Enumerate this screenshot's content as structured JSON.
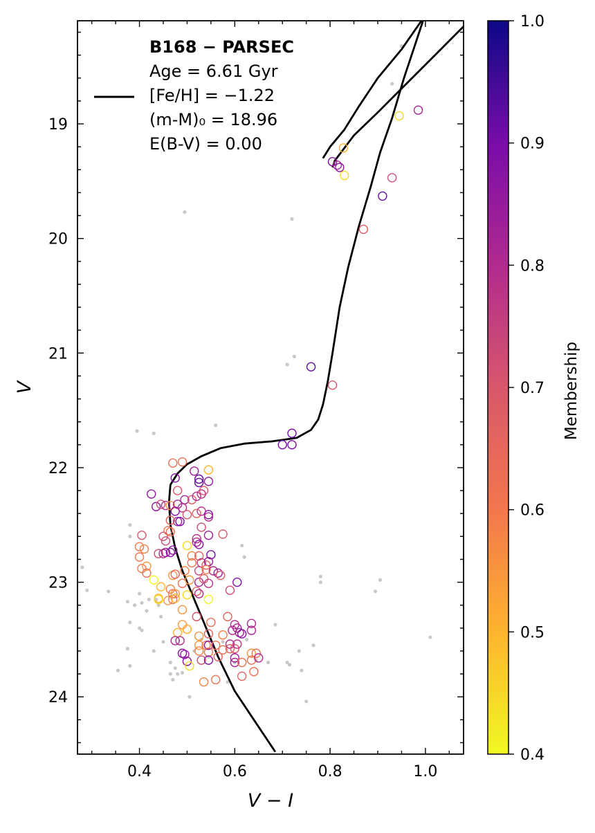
{
  "chart_data": {
    "type": "scatter",
    "xlabel": "V − I",
    "ylabel": "V",
    "xlim": [
      0.27,
      1.08
    ],
    "ylim": [
      24.5,
      18.1
    ],
    "y_inverted": true,
    "x_ticks": [
      0.4,
      0.6,
      0.8,
      1.0
    ],
    "x_tick_labels": [
      "0.4",
      "0.6",
      "0.8",
      "1.0"
    ],
    "y_ticks": [
      19,
      20,
      21,
      22,
      23,
      24
    ],
    "y_tick_labels": [
      "19",
      "20",
      "21",
      "22",
      "23",
      "24"
    ],
    "legend": {
      "position": "upper-left",
      "title": "B168 − PARSEC",
      "lines": [
        "Age = 6.61 Gyr",
        "[Fe/H] = −1.22",
        "(m-M)₀ = 18.96",
        "E(B-V) = 0.00"
      ]
    },
    "colorbar": {
      "label": "Membership",
      "colormap": "plasma_r",
      "range": [
        0.4,
        1.0
      ],
      "ticks": [
        0.4,
        0.5,
        0.6,
        0.7,
        0.8,
        0.9,
        1.0
      ],
      "tick_labels": [
        "0.4",
        "0.5",
        "0.6",
        "0.7",
        "0.8",
        "0.9",
        "1.0"
      ]
    },
    "isochrone": {
      "name": "PARSEC isochrone",
      "color": "#000000",
      "points": [
        [
          0.685,
          24.48
        ],
        [
          0.64,
          24.2
        ],
        [
          0.6,
          23.95
        ],
        [
          0.565,
          23.65
        ],
        [
          0.535,
          23.35
        ],
        [
          0.51,
          23.1
        ],
        [
          0.49,
          22.9
        ],
        [
          0.475,
          22.7
        ],
        [
          0.465,
          22.5
        ],
        [
          0.462,
          22.3
        ],
        [
          0.465,
          22.15
        ],
        [
          0.48,
          22.05
        ],
        [
          0.5,
          21.97
        ],
        [
          0.53,
          21.9
        ],
        [
          0.57,
          21.83
        ],
        [
          0.62,
          21.79
        ],
        [
          0.68,
          21.77
        ],
        [
          0.73,
          21.74
        ],
        [
          0.76,
          21.67
        ],
        [
          0.775,
          21.58
        ],
        [
          0.785,
          21.45
        ],
        [
          0.795,
          21.25
        ],
        [
          0.805,
          21.0
        ],
        [
          0.82,
          20.6
        ],
        [
          0.838,
          20.25
        ],
        [
          0.86,
          19.9
        ],
        [
          0.885,
          19.55
        ],
        [
          0.905,
          19.25
        ],
        [
          0.93,
          18.95
        ],
        [
          0.955,
          18.6
        ],
        [
          0.975,
          18.35
        ],
        [
          0.995,
          18.1
        ]
      ]
    },
    "isochrone_rgb_branch": {
      "points": [
        [
          0.805,
          19.38
        ],
        [
          0.81,
          19.32
        ],
        [
          0.85,
          19.1
        ],
        [
          0.9,
          18.9
        ],
        [
          0.96,
          18.65
        ],
        [
          1.02,
          18.4
        ],
        [
          1.08,
          18.15
        ]
      ]
    },
    "isochrone_agb_branch": {
      "points": [
        [
          0.785,
          19.3
        ],
        [
          0.8,
          19.2
        ],
        [
          0.83,
          19.05
        ],
        [
          0.86,
          18.85
        ],
        [
          0.9,
          18.6
        ],
        [
          0.95,
          18.35
        ],
        [
          1.0,
          18.05
        ]
      ]
    },
    "field_stars": {
      "color": "#c8c8c8",
      "points": [
        [
          0.28,
          22.87
        ],
        [
          0.29,
          23.07
        ],
        [
          0.335,
          23.08
        ],
        [
          0.355,
          23.77
        ],
        [
          0.375,
          23.17
        ],
        [
          0.375,
          23.58
        ],
        [
          0.38,
          23.35
        ],
        [
          0.38,
          23.73
        ],
        [
          0.38,
          22.5
        ],
        [
          0.38,
          22.6
        ],
        [
          0.39,
          23.2
        ],
        [
          0.395,
          21.68
        ],
        [
          0.4,
          23.1
        ],
        [
          0.4,
          23.4
        ],
        [
          0.405,
          23.42
        ],
        [
          0.405,
          23.18
        ],
        [
          0.415,
          23.25
        ],
        [
          0.42,
          23.15
        ],
        [
          0.43,
          21.7
        ],
        [
          0.43,
          23.6
        ],
        [
          0.435,
          23.15
        ],
        [
          0.44,
          23.2
        ],
        [
          0.445,
          23.3
        ],
        [
          0.45,
          23.52
        ],
        [
          0.465,
          23.7
        ],
        [
          0.465,
          23.8
        ],
        [
          0.47,
          23.85
        ],
        [
          0.475,
          23.75
        ],
        [
          0.48,
          23.8
        ],
        [
          0.49,
          23.79
        ],
        [
          0.495,
          19.77
        ],
        [
          0.505,
          24.0
        ],
        [
          0.515,
          23.6
        ],
        [
          0.53,
          23.5
        ],
        [
          0.545,
          23.65
        ],
        [
          0.56,
          21.63
        ],
        [
          0.575,
          23.52
        ],
        [
          0.585,
          23.87
        ],
        [
          0.6,
          23.7
        ],
        [
          0.615,
          22.68
        ],
        [
          0.62,
          22.78
        ],
        [
          0.625,
          23.5
        ],
        [
          0.645,
          23.68
        ],
        [
          0.67,
          23.7
        ],
        [
          0.685,
          23.37
        ],
        [
          0.71,
          21.1
        ],
        [
          0.71,
          23.7
        ],
        [
          0.715,
          23.72
        ],
        [
          0.72,
          19.83
        ],
        [
          0.725,
          21.03
        ],
        [
          0.735,
          23.6
        ],
        [
          0.74,
          23.77
        ],
        [
          0.75,
          24.04
        ],
        [
          0.765,
          23.55
        ],
        [
          0.78,
          22.95
        ],
        [
          0.78,
          23.0
        ],
        [
          0.895,
          23.08
        ],
        [
          0.905,
          22.98
        ],
        [
          0.93,
          18.65
        ],
        [
          0.95,
          18.32
        ],
        [
          1.01,
          23.48
        ]
      ]
    },
    "member_stars": [
      [
        0.47,
        21.96,
        0.62
      ],
      [
        0.49,
        21.95,
        0.62
      ],
      [
        0.515,
        22.03,
        0.84
      ],
      [
        0.545,
        22.02,
        0.5
      ],
      [
        0.475,
        22.09,
        0.88
      ],
      [
        0.525,
        22.1,
        0.92
      ],
      [
        0.525,
        22.13,
        0.92
      ],
      [
        0.545,
        22.12,
        0.86
      ],
      [
        0.425,
        22.23,
        0.86
      ],
      [
        0.48,
        22.2,
        0.7
      ],
      [
        0.535,
        22.2,
        0.68
      ],
      [
        0.435,
        22.34,
        0.86
      ],
      [
        0.445,
        22.32,
        0.72
      ],
      [
        0.455,
        22.33,
        0.8
      ],
      [
        0.465,
        22.33,
        0.55
      ],
      [
        0.475,
        22.38,
        0.88
      ],
      [
        0.48,
        22.32,
        0.82
      ],
      [
        0.495,
        22.28,
        0.82
      ],
      [
        0.51,
        22.28,
        0.68
      ],
      [
        0.52,
        22.25,
        0.8
      ],
      [
        0.53,
        22.23,
        0.78
      ],
      [
        0.49,
        22.35,
        0.8
      ],
      [
        0.5,
        22.41,
        0.7
      ],
      [
        0.48,
        22.47,
        0.84
      ],
      [
        0.485,
        22.47,
        0.9
      ],
      [
        0.52,
        22.4,
        0.66
      ],
      [
        0.53,
        22.38,
        0.78
      ],
      [
        0.545,
        22.41,
        0.88
      ],
      [
        0.53,
        22.52,
        0.72
      ],
      [
        0.465,
        22.46,
        0.66
      ],
      [
        0.465,
        22.56,
        0.62
      ],
      [
        0.545,
        22.43,
        0.8
      ],
      [
        0.405,
        22.59,
        0.7
      ],
      [
        0.45,
        22.6,
        0.72
      ],
      [
        0.455,
        22.64,
        0.72
      ],
      [
        0.46,
        22.55,
        0.62
      ],
      [
        0.545,
        22.59,
        0.84
      ],
      [
        0.575,
        22.58,
        0.68
      ],
      [
        0.52,
        22.62,
        0.78
      ],
      [
        0.52,
        22.65,
        0.8
      ],
      [
        0.525,
        22.67,
        0.88
      ],
      [
        0.4,
        22.69,
        0.6
      ],
      [
        0.41,
        22.71,
        0.58
      ],
      [
        0.44,
        22.75,
        0.72
      ],
      [
        0.45,
        22.75,
        0.8
      ],
      [
        0.455,
        22.74,
        0.84
      ],
      [
        0.465,
        22.74,
        0.88
      ],
      [
        0.47,
        22.72,
        0.86
      ],
      [
        0.5,
        22.68,
        0.45
      ],
      [
        0.51,
        22.77,
        0.58
      ],
      [
        0.525,
        22.77,
        0.66
      ],
      [
        0.55,
        22.76,
        0.9
      ],
      [
        0.4,
        22.78,
        0.6
      ],
      [
        0.405,
        22.88,
        0.6
      ],
      [
        0.415,
        22.86,
        0.55
      ],
      [
        0.415,
        22.92,
        0.62
      ],
      [
        0.51,
        22.83,
        0.62
      ],
      [
        0.53,
        22.83,
        0.78
      ],
      [
        0.54,
        22.85,
        0.66
      ],
      [
        0.545,
        22.82,
        0.84
      ],
      [
        0.47,
        22.94,
        0.55
      ],
      [
        0.475,
        22.93,
        0.66
      ],
      [
        0.495,
        22.9,
        0.58
      ],
      [
        0.525,
        22.9,
        0.72
      ],
      [
        0.54,
        22.89,
        0.58
      ],
      [
        0.555,
        22.9,
        0.8
      ],
      [
        0.565,
        22.92,
        0.84
      ],
      [
        0.57,
        22.94,
        0.68
      ],
      [
        0.43,
        22.98,
        0.4
      ],
      [
        0.49,
        23.01,
        0.62
      ],
      [
        0.505,
        22.98,
        0.55
      ],
      [
        0.525,
        23.0,
        0.82
      ],
      [
        0.535,
        22.97,
        0.68
      ],
      [
        0.545,
        23.01,
        0.78
      ],
      [
        0.605,
        23.0,
        0.88
      ],
      [
        0.445,
        23.04,
        0.5
      ],
      [
        0.465,
        23.06,
        0.58
      ],
      [
        0.47,
        23.1,
        0.62
      ],
      [
        0.475,
        23.1,
        0.55
      ],
      [
        0.5,
        23.11,
        0.45
      ],
      [
        0.52,
        23.08,
        0.66
      ],
      [
        0.525,
        23.1,
        0.8
      ],
      [
        0.59,
        23.07,
        0.72
      ],
      [
        0.44,
        23.14,
        0.5
      ],
      [
        0.44,
        23.15,
        0.45
      ],
      [
        0.46,
        23.16,
        0.55
      ],
      [
        0.47,
        23.15,
        0.62
      ],
      [
        0.475,
        23.14,
        0.5
      ],
      [
        0.545,
        23.15,
        0.4
      ],
      [
        0.49,
        23.24,
        0.55
      ],
      [
        0.585,
        23.3,
        0.66
      ],
      [
        0.49,
        23.37,
        0.55
      ],
      [
        0.5,
        23.41,
        0.62
      ],
      [
        0.52,
        23.3,
        0.7
      ],
      [
        0.55,
        23.35,
        0.62
      ],
      [
        0.6,
        23.37,
        0.8
      ],
      [
        0.605,
        23.4,
        0.82
      ],
      [
        0.61,
        23.44,
        0.84
      ],
      [
        0.635,
        23.36,
        0.8
      ],
      [
        0.635,
        23.42,
        0.8
      ],
      [
        0.48,
        23.44,
        0.5
      ],
      [
        0.5,
        23.41,
        0.5
      ],
      [
        0.525,
        23.47,
        0.55
      ],
      [
        0.545,
        23.45,
        0.66
      ],
      [
        0.575,
        23.46,
        0.58
      ],
      [
        0.595,
        23.42,
        0.8
      ],
      [
        0.615,
        23.45,
        0.88
      ],
      [
        0.475,
        23.51,
        0.82
      ],
      [
        0.485,
        23.51,
        0.8
      ],
      [
        0.525,
        23.55,
        0.55
      ],
      [
        0.54,
        23.55,
        0.6
      ],
      [
        0.545,
        23.55,
        0.88
      ],
      [
        0.56,
        23.55,
        0.62
      ],
      [
        0.59,
        23.58,
        0.66
      ],
      [
        0.59,
        23.54,
        0.8
      ],
      [
        0.6,
        23.58,
        0.7
      ],
      [
        0.605,
        23.54,
        0.78
      ],
      [
        0.635,
        23.62,
        0.55
      ],
      [
        0.645,
        23.62,
        0.62
      ],
      [
        0.49,
        23.62,
        0.88
      ],
      [
        0.495,
        23.63,
        0.84
      ],
      [
        0.525,
        23.6,
        0.58
      ],
      [
        0.545,
        23.61,
        0.62
      ],
      [
        0.565,
        23.65,
        0.66
      ],
      [
        0.575,
        23.59,
        0.62
      ],
      [
        0.6,
        23.66,
        0.84
      ],
      [
        0.6,
        23.7,
        0.82
      ],
      [
        0.615,
        23.7,
        0.62
      ],
      [
        0.635,
        23.68,
        0.62
      ],
      [
        0.65,
        23.66,
        0.8
      ],
      [
        0.5,
        23.69,
        0.88
      ],
      [
        0.505,
        23.73,
        0.45
      ],
      [
        0.53,
        23.68,
        0.72
      ],
      [
        0.545,
        23.68,
        0.88
      ],
      [
        0.64,
        23.78,
        0.62
      ],
      [
        0.615,
        23.82,
        0.66
      ],
      [
        0.535,
        23.87,
        0.58
      ],
      [
        0.56,
        23.85,
        0.62
      ],
      [
        0.7,
        21.8,
        0.9
      ],
      [
        0.72,
        21.8,
        0.9
      ],
      [
        0.72,
        21.7,
        0.9
      ],
      [
        0.76,
        21.12,
        0.92
      ],
      [
        0.805,
        21.28,
        0.7
      ],
      [
        0.87,
        19.92,
        0.68
      ],
      [
        0.91,
        19.63,
        0.92
      ],
      [
        0.93,
        19.47,
        0.72
      ],
      [
        0.945,
        18.93,
        0.45
      ],
      [
        0.985,
        18.88,
        0.82
      ],
      [
        0.805,
        19.33,
        0.88
      ],
      [
        0.815,
        19.36,
        0.82
      ],
      [
        0.82,
        19.38,
        0.86
      ],
      [
        0.83,
        19.45,
        0.45
      ],
      [
        0.828,
        19.21,
        0.5
      ]
    ]
  }
}
